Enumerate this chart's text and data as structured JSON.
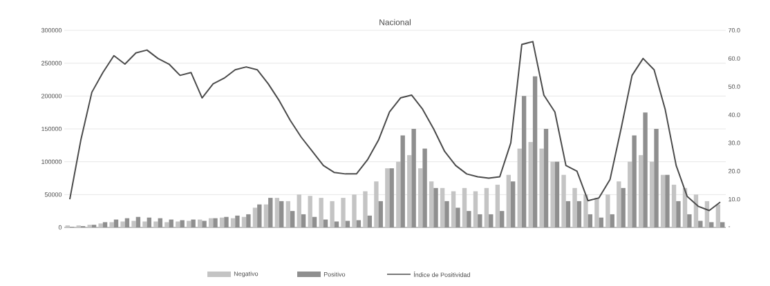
{
  "chart_data": {
    "type": "bar",
    "title": "Nacional",
    "categories": [
      null,
      null,
      null,
      null,
      null,
      null,
      null,
      null,
      null,
      null,
      null,
      null,
      null,
      null,
      null,
      null,
      null,
      null,
      null,
      null,
      null,
      null,
      null,
      null,
      null,
      null,
      null,
      null,
      null,
      null,
      null,
      null,
      null,
      null,
      null,
      null,
      null,
      null,
      null,
      null,
      null,
      null,
      null,
      null,
      null,
      null,
      null,
      null,
      null,
      null,
      null,
      null,
      null,
      null,
      null,
      null,
      null,
      null,
      null,
      null
    ],
    "series": [
      {
        "name": "Negativo",
        "color": "#c4c4c4",
        "values": [
          3000,
          3000,
          4000,
          6000,
          8000,
          9000,
          10000,
          9000,
          9000,
          8000,
          9000,
          10000,
          12000,
          14000,
          15000,
          14000,
          16000,
          30000,
          35000,
          45000,
          40000,
          50000,
          48000,
          45000,
          40000,
          45000,
          50000,
          55000,
          70000,
          90000,
          100000,
          110000,
          90000,
          70000,
          60000,
          55000,
          60000,
          55000,
          60000,
          65000,
          80000,
          120000,
          130000,
          120000,
          100000,
          80000,
          60000,
          50000,
          45000,
          50000,
          70000,
          100000,
          110000,
          100000,
          80000,
          65000,
          60000,
          50000,
          40000,
          35000
        ]
      },
      {
        "name": "Positivo",
        "color": "#8f8f8f",
        "values": [
          1000,
          2000,
          4000,
          8000,
          12000,
          14000,
          16000,
          15000,
          14000,
          12000,
          11000,
          12000,
          10000,
          14000,
          16000,
          18000,
          20000,
          35000,
          45000,
          40000,
          25000,
          20000,
          16000,
          12000,
          9000,
          10000,
          11000,
          18000,
          40000,
          90000,
          140000,
          150000,
          120000,
          60000,
          40000,
          30000,
          25000,
          20000,
          20000,
          25000,
          70000,
          200000,
          230000,
          150000,
          100000,
          40000,
          40000,
          20000,
          15000,
          20000,
          60000,
          140000,
          175000,
          150000,
          80000,
          40000,
          20000,
          10000,
          8000,
          8000
        ]
      },
      {
        "name": "Índice de Positividad",
        "type": "line",
        "axis": "y2",
        "color": "#4a4a4a",
        "values": [
          10,
          31,
          48,
          55,
          61,
          58,
          62,
          63,
          60,
          58,
          54,
          55,
          46,
          51,
          53,
          56,
          57,
          56,
          51,
          45,
          38,
          32,
          27,
          22,
          19.5,
          19,
          19,
          24,
          31,
          41,
          46,
          47,
          42,
          35,
          27,
          22,
          19,
          18,
          17.5,
          18,
          30,
          65,
          66,
          47,
          41,
          22,
          20,
          9.5,
          10.5,
          17,
          35,
          54,
          60,
          56,
          42,
          22,
          11,
          7.5,
          6,
          9
        ]
      }
    ],
    "ylim": [
      0,
      300000
    ],
    "yticks": [
      0,
      50000,
      100000,
      150000,
      200000,
      250000,
      300000
    ],
    "y2lim": [
      0,
      70
    ],
    "y2ticks": [
      {
        "value": 0,
        "label": "-"
      },
      {
        "value": 10,
        "label": "10.0"
      },
      {
        "value": 20,
        "label": "20.0"
      },
      {
        "value": 30,
        "label": "30.0"
      },
      {
        "value": 40,
        "label": "40.0"
      },
      {
        "value": 50,
        "label": "50.0"
      },
      {
        "value": 60,
        "label": "60.0"
      },
      {
        "value": 70,
        "label": "70.0"
      }
    ],
    "grid": "y",
    "legend": "bottom",
    "marker": "none",
    "line_style": "solid"
  }
}
